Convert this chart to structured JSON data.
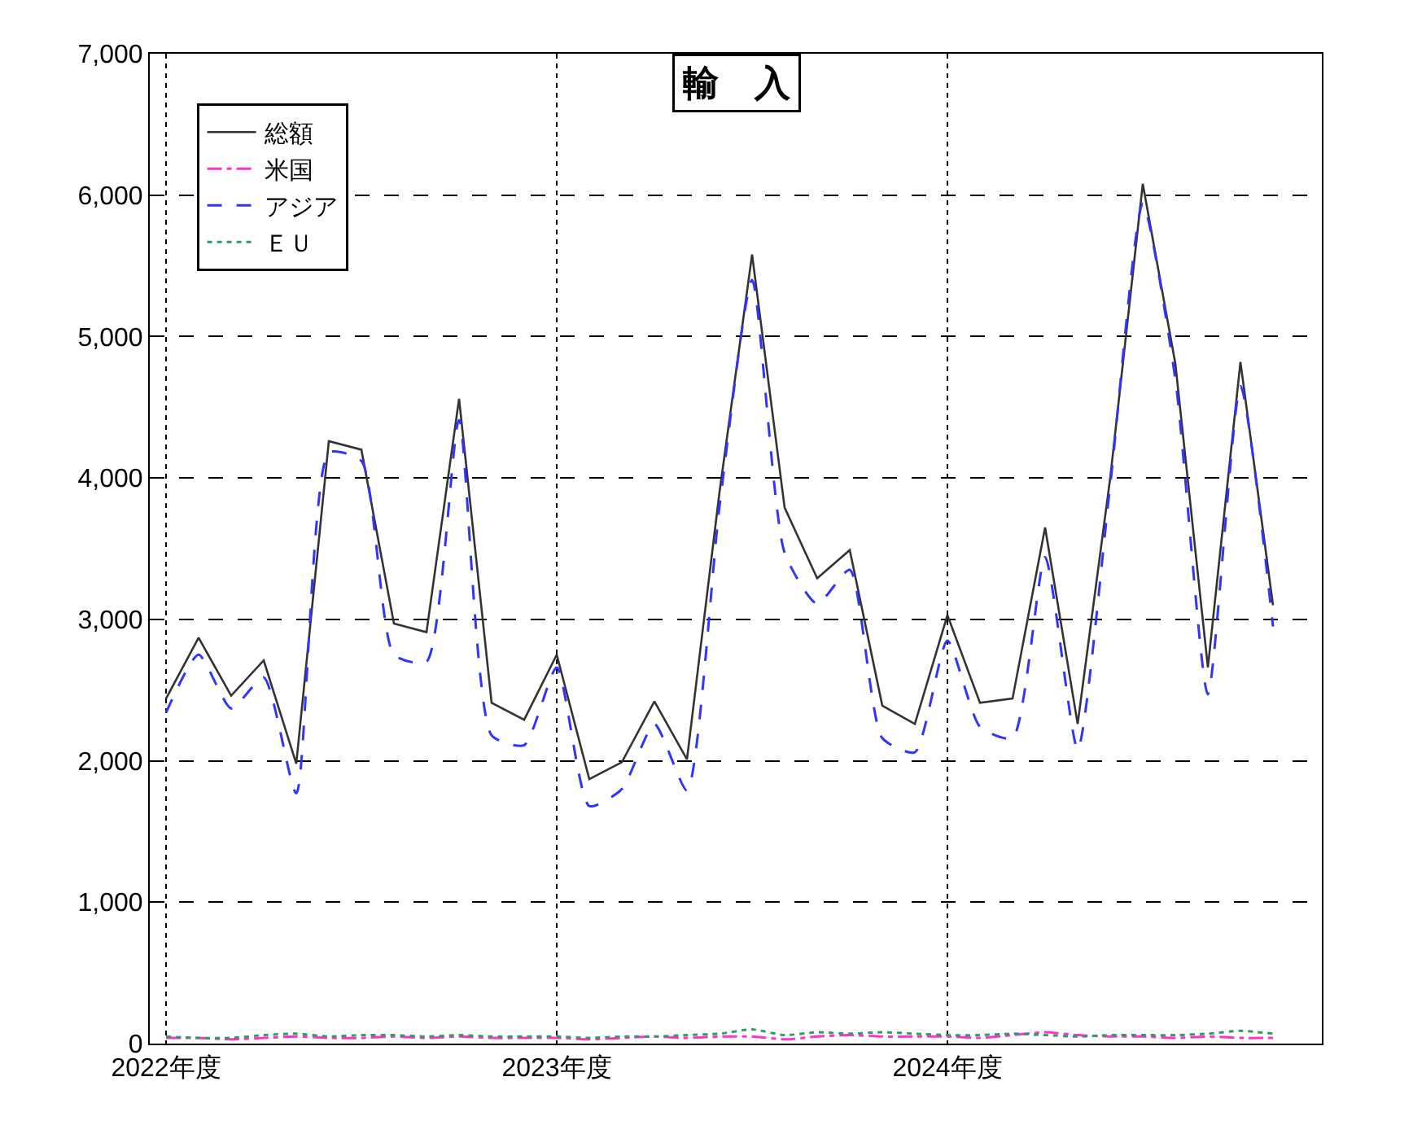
{
  "chart_data": {
    "type": "line",
    "title": "輸　入",
    "categories": [
      "2022年度",
      null,
      null,
      null,
      null,
      null,
      null,
      null,
      null,
      null,
      null,
      null,
      "2023年度",
      null,
      null,
      null,
      null,
      null,
      null,
      null,
      null,
      null,
      null,
      null,
      "2024年度",
      null,
      null,
      null,
      null,
      null,
      null,
      null,
      null,
      null,
      null
    ],
    "series": [
      {
        "name": "総額",
        "color": "#333333",
        "line_style": "solid",
        "values": [
          2440,
          2870,
          2460,
          2710,
          1980,
          4260,
          4200,
          2970,
          2910,
          4560,
          2410,
          2290,
          2750,
          1870,
          1990,
          2420,
          2010,
          3900,
          5580,
          3790,
          3290,
          3490,
          2390,
          2260,
          3030,
          2410,
          2440,
          3650,
          2260,
          4000,
          6080,
          4810,
          2660,
          4820,
          3100
        ]
      },
      {
        "name": "米国",
        "color": "#ff33cc",
        "line_style": "dashdot",
        "values": [
          40,
          40,
          30,
          40,
          50,
          40,
          40,
          50,
          40,
          50,
          40,
          40,
          40,
          30,
          40,
          50,
          40,
          50,
          50,
          30,
          50,
          60,
          50,
          50,
          50,
          40,
          60,
          80,
          60,
          50,
          50,
          40,
          50,
          40,
          40
        ]
      },
      {
        "name": "アジア",
        "color": "#3333ff",
        "line_style": "dashed",
        "values": [
          2340,
          2750,
          2370,
          2590,
          1770,
          4180,
          4120,
          2750,
          2700,
          4410,
          2180,
          2110,
          2660,
          1680,
          1800,
          2260,
          1790,
          3800,
          5400,
          3470,
          3110,
          3350,
          2160,
          2060,
          2850,
          2240,
          2160,
          3440,
          2080,
          3950,
          5940,
          4700,
          2470,
          4650,
          2950
        ]
      },
      {
        "name": "ＥＵ",
        "color": "#339966",
        "line_style": "dotted",
        "values": [
          50,
          40,
          40,
          60,
          70,
          50,
          60,
          60,
          50,
          60,
          50,
          50,
          50,
          40,
          50,
          50,
          60,
          70,
          100,
          60,
          80,
          70,
          80,
          70,
          60,
          60,
          70,
          60,
          50,
          60,
          60,
          60,
          70,
          90,
          70
        ]
      }
    ],
    "ylim": [
      0,
      7000
    ],
    "yticks": [
      {
        "value": 0,
        "label": "0"
      },
      {
        "value": 1000,
        "label": "1,000"
      },
      {
        "value": 2000,
        "label": "2,000"
      },
      {
        "value": 3000,
        "label": "3,000"
      },
      {
        "value": 4000,
        "label": "4,000"
      },
      {
        "value": 5000,
        "label": "5,000"
      },
      {
        "value": 6000,
        "label": "6,000"
      },
      {
        "value": 7000,
        "label": "7,000"
      }
    ],
    "grid": true,
    "legend": "top left"
  }
}
